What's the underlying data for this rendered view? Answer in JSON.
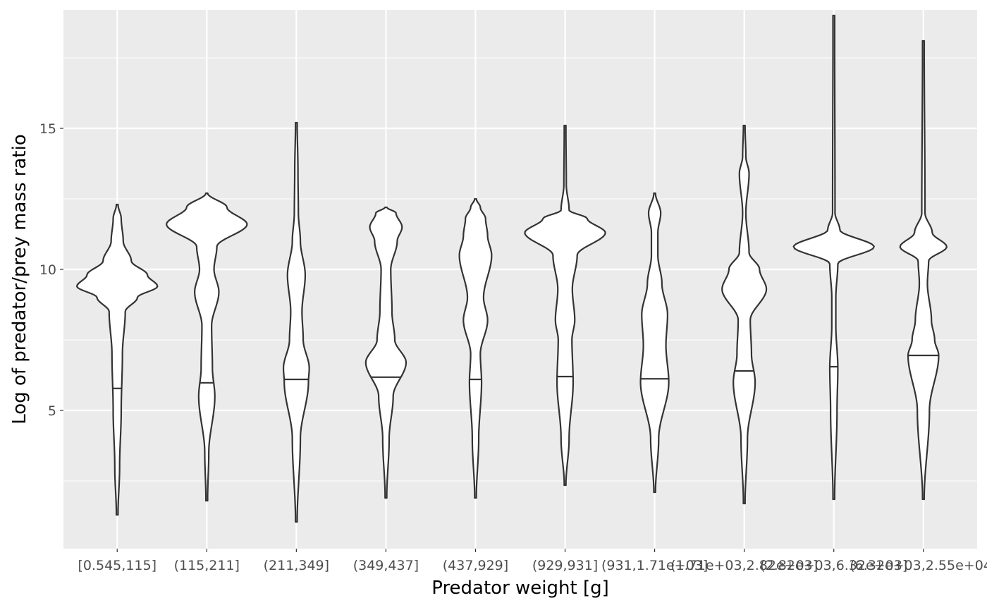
{
  "chart_data": {
    "type": "violin",
    "xlabel": "Predator weight [g]",
    "ylabel": "Log of predator/prey mass ratio",
    "ylim": [
      0.1,
      19.2
    ],
    "yticks": [
      5,
      10,
      15
    ],
    "grid": true,
    "colors": {
      "panel": "#ebebeb",
      "grid": "#ffffff",
      "outline": "#333333",
      "fill": "#ffffff",
      "tick_text": "#4d4d4d"
    },
    "categories": [
      "[0.545,115]",
      "(115,211]",
      "(211,349]",
      "(349,437]",
      "(437,929]",
      "(929,931]",
      "(931,1.71e+03]",
      "(1.71e+03,2.82e+03]",
      "(2.82e+03,6.32e+03]",
      "(6.32e+03,2.55e+04]"
    ],
    "violins": [
      {
        "min": 1.3,
        "max": 12.3,
        "median": 5.78,
        "profile": [
          [
            1.3,
            0.02
          ],
          [
            3,
            0.06
          ],
          [
            5,
            0.1
          ],
          [
            7,
            0.13
          ],
          [
            8.5,
            0.2
          ],
          [
            9,
            0.5
          ],
          [
            9.4,
            1.0
          ],
          [
            9.8,
            0.75
          ],
          [
            10.3,
            0.35
          ],
          [
            11,
            0.15
          ],
          [
            11.8,
            0.1
          ],
          [
            12.3,
            0.02
          ]
        ]
      },
      {
        "min": 1.8,
        "max": 12.7,
        "median": 5.98,
        "profile": [
          [
            1.8,
            0.02
          ],
          [
            3.5,
            0.05
          ],
          [
            5.5,
            0.2
          ],
          [
            6.5,
            0.14
          ],
          [
            8,
            0.12
          ],
          [
            9.2,
            0.3
          ],
          [
            10,
            0.18
          ],
          [
            10.8,
            0.25
          ],
          [
            11.6,
            1.0
          ],
          [
            12.2,
            0.5
          ],
          [
            12.7,
            0.02
          ]
        ]
      },
      {
        "min": 1.05,
        "max": 15.2,
        "median": 6.1,
        "profile": [
          [
            1.05,
            0.02
          ],
          [
            4,
            0.1
          ],
          [
            6,
            0.3
          ],
          [
            6.5,
            0.32
          ],
          [
            7.5,
            0.17
          ],
          [
            8.5,
            0.14
          ],
          [
            9.8,
            0.22
          ],
          [
            11,
            0.1
          ],
          [
            12,
            0.05
          ],
          [
            13.5,
            0.04
          ],
          [
            15.2,
            0.02
          ]
        ]
      },
      {
        "min": 1.9,
        "max": 12.2,
        "median": 6.18,
        "profile": [
          [
            1.9,
            0.02
          ],
          [
            4,
            0.08
          ],
          [
            5.5,
            0.18
          ],
          [
            6.7,
            0.5
          ],
          [
            7.5,
            0.22
          ],
          [
            8.5,
            0.15
          ],
          [
            10,
            0.12
          ],
          [
            11,
            0.28
          ],
          [
            11.5,
            0.4
          ],
          [
            12,
            0.25
          ],
          [
            12.2,
            0.02
          ]
        ]
      },
      {
        "min": 1.9,
        "max": 12.5,
        "median": 6.1,
        "profile": [
          [
            1.9,
            0.02
          ],
          [
            4,
            0.08
          ],
          [
            6,
            0.15
          ],
          [
            7,
            0.12
          ],
          [
            8.2,
            0.3
          ],
          [
            9,
            0.2
          ],
          [
            10.5,
            0.4
          ],
          [
            11.2,
            0.3
          ],
          [
            11.8,
            0.25
          ],
          [
            12.2,
            0.12
          ],
          [
            12.5,
            0.02
          ]
        ]
      },
      {
        "min": 2.35,
        "max": 15.1,
        "median": 6.2,
        "profile": [
          [
            2.35,
            0.02
          ],
          [
            4,
            0.1
          ],
          [
            6,
            0.2
          ],
          [
            7.5,
            0.17
          ],
          [
            8.2,
            0.24
          ],
          [
            9.3,
            0.18
          ],
          [
            10.5,
            0.3
          ],
          [
            11.3,
            1.0
          ],
          [
            11.8,
            0.55
          ],
          [
            12.1,
            0.1
          ],
          [
            13,
            0.03
          ],
          [
            15.1,
            0.02
          ]
        ]
      },
      {
        "min": 2.1,
        "max": 12.7,
        "median": 6.12,
        "profile": [
          [
            2.1,
            0.02
          ],
          [
            4,
            0.1
          ],
          [
            6,
            0.35
          ],
          [
            7.3,
            0.28
          ],
          [
            8.4,
            0.32
          ],
          [
            9.5,
            0.18
          ],
          [
            10.5,
            0.08
          ],
          [
            11.3,
            0.08
          ],
          [
            12,
            0.15
          ],
          [
            12.7,
            0.02
          ]
        ]
      },
      {
        "min": 1.7,
        "max": 15.1,
        "median": 6.4,
        "profile": [
          [
            1.7,
            0.02
          ],
          [
            4,
            0.08
          ],
          [
            6,
            0.27
          ],
          [
            7,
            0.18
          ],
          [
            8.2,
            0.15
          ],
          [
            9.3,
            0.55
          ],
          [
            10,
            0.38
          ],
          [
            10.6,
            0.12
          ],
          [
            12,
            0.04
          ],
          [
            13.4,
            0.12
          ],
          [
            14,
            0.04
          ],
          [
            15.1,
            0.02
          ]
        ]
      },
      {
        "min": 1.85,
        "max": 19.0,
        "median": 6.55,
        "profile": [
          [
            1.85,
            0.02
          ],
          [
            5,
            0.08
          ],
          [
            6.5,
            0.1
          ],
          [
            8,
            0.05
          ],
          [
            9,
            0.05
          ],
          [
            10.2,
            0.1
          ],
          [
            10.8,
            1.0
          ],
          [
            11.4,
            0.15
          ],
          [
            12,
            0.03
          ],
          [
            19.0,
            0.02
          ]
        ]
      },
      {
        "min": 1.85,
        "max": 18.1,
        "median": 6.95,
        "profile": [
          [
            1.85,
            0.02
          ],
          [
            5,
            0.15
          ],
          [
            6.95,
            0.38
          ],
          [
            7.5,
            0.28
          ],
          [
            8.2,
            0.2
          ],
          [
            9.5,
            0.1
          ],
          [
            10.3,
            0.13
          ],
          [
            10.8,
            0.58
          ],
          [
            11.3,
            0.22
          ],
          [
            12,
            0.04
          ],
          [
            18.1,
            0.02
          ]
        ]
      }
    ]
  }
}
